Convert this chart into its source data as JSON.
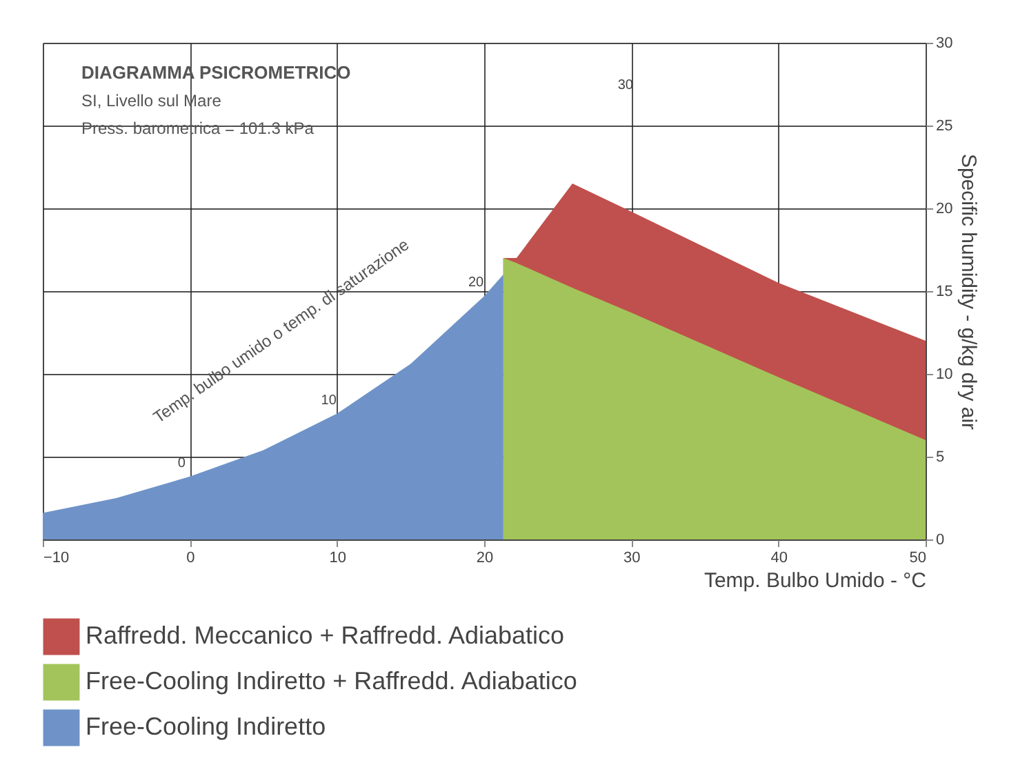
{
  "chart_data": {
    "type": "area",
    "title": "DIAGRAMMA PSICROMETRICO",
    "subtitle": [
      "SI, Livello sul Mare",
      "Press. barometrica = 101.3 kPa"
    ],
    "xlabel": "Temp. Bulbo Umido - °C",
    "ylabel": "Specific humidity - g/kg dry air",
    "series": [
      {
        "name": "Raffredd. Meccanico + Raffredd. Adiabatico",
        "color": "#c0504d",
        "x": [
          21.3,
          22.2,
          26,
          30,
          40,
          50
        ],
        "values": [
          17,
          17,
          21.5,
          19.8,
          15.5,
          12
        ]
      },
      {
        "name": "Free-Cooling Indiretto + Raffredd. Adiabatico",
        "color": "#a3c45a",
        "x": [
          21.3,
          22.2,
          26,
          30,
          40,
          50
        ],
        "values": [
          17,
          16.7,
          15.2,
          13.7,
          9.8,
          6
        ]
      },
      {
        "name": "Free-Cooling Indiretto",
        "color": "#6f93c8",
        "x": [
          -10,
          -5,
          0,
          5,
          10,
          15,
          20,
          21.3
        ],
        "values": [
          1.6,
          2.5,
          3.8,
          5.4,
          7.6,
          10.6,
          14.7,
          16
        ]
      }
    ],
    "annotations": [
      {
        "text": "0",
        "x": 0,
        "y": 3.8
      },
      {
        "text": "10",
        "x": 10,
        "y": 7.6
      },
      {
        "text": "20",
        "x": 20,
        "y": 14.7
      },
      "30",
      "Temp. bulbo umido o temp. di saturazione"
    ],
    "xlim": [
      -10,
      50
    ],
    "xticks": [
      -10,
      0,
      10,
      20,
      30,
      40,
      50
    ],
    "ylim": [
      0,
      30
    ],
    "yticks": [
      0,
      5,
      10,
      15,
      20,
      25,
      30
    ],
    "grid": true,
    "legend": "bottom"
  }
}
